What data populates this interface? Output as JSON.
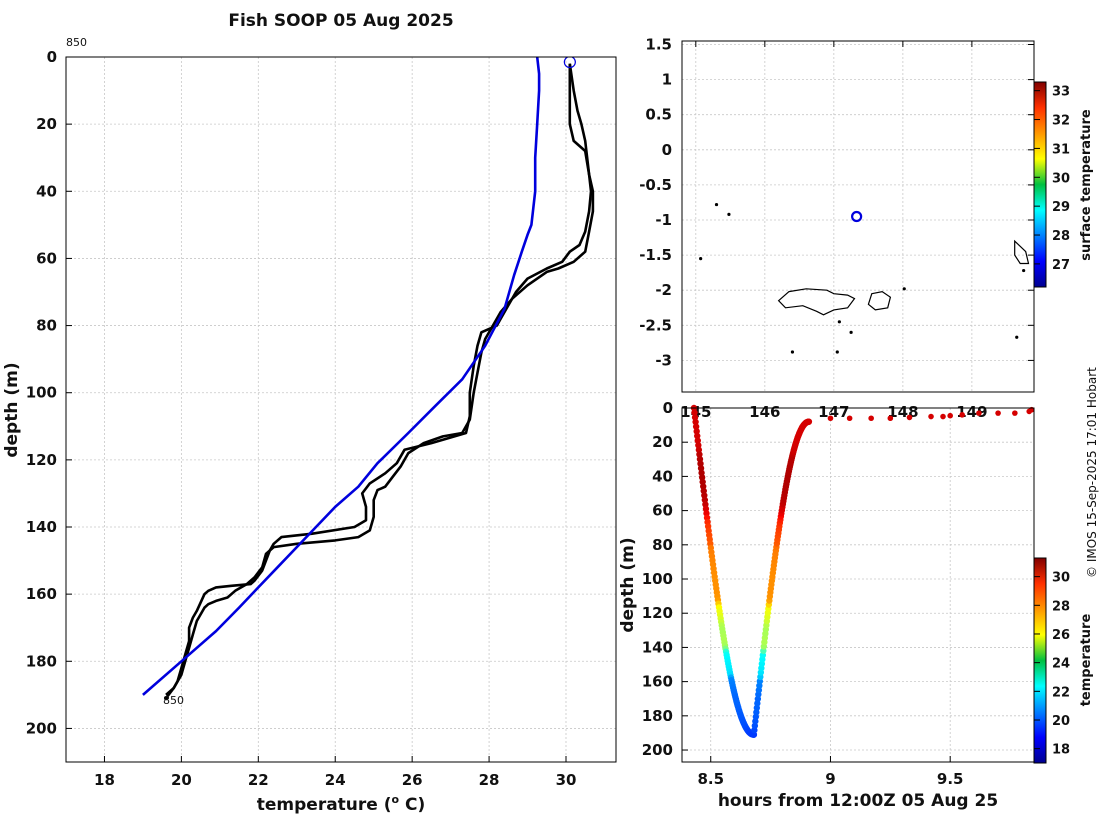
{
  "figure": {
    "title": "Fish SOOP 05 Aug 2025",
    "credit": "© IMOS 15-Sep-2025 17:01 Hobart"
  },
  "chart_data": [
    {
      "id": "profile",
      "type": "line",
      "title": "Fish SOOP 05 Aug 2025",
      "xlabel": "temperature (o C)",
      "xlabel_main": "temperature (",
      "xlabel_sup": "o",
      "xlabel_tail": " C)",
      "ylabel": "depth (m)",
      "xlim": [
        17,
        31.3
      ],
      "ylim": [
        210,
        0
      ],
      "xticks": [
        18,
        20,
        22,
        24,
        26,
        28,
        30
      ],
      "yticks": [
        0,
        20,
        40,
        60,
        80,
        100,
        120,
        140,
        160,
        180,
        200
      ],
      "grid": true,
      "annotations": {
        "top_id": "850",
        "bottom_id": "850"
      },
      "series": [
        {
          "name": "profile-1",
          "color": "#000000",
          "points": [
            [
              30.1,
              2
            ],
            [
              30.1,
              10
            ],
            [
              30.1,
              20
            ],
            [
              30.2,
              25
            ],
            [
              30.5,
              28
            ],
            [
              30.6,
              35
            ],
            [
              30.65,
              40
            ],
            [
              30.6,
              46
            ],
            [
              30.5,
              52
            ],
            [
              30.35,
              56
            ],
            [
              30.1,
              58
            ],
            [
              29.9,
              61
            ],
            [
              29.5,
              63
            ],
            [
              29.0,
              66
            ],
            [
              28.7,
              70
            ],
            [
              28.5,
              74
            ],
            [
              28.3,
              78
            ],
            [
              28.2,
              80
            ],
            [
              27.8,
              82
            ],
            [
              27.7,
              86
            ],
            [
              27.6,
              92
            ],
            [
              27.5,
              100
            ],
            [
              27.5,
              107
            ],
            [
              27.4,
              112
            ],
            [
              26.5,
              115
            ],
            [
              25.8,
              117
            ],
            [
              25.6,
              121
            ],
            [
              25.3,
              124
            ],
            [
              24.9,
              127
            ],
            [
              24.7,
              130
            ],
            [
              24.8,
              134
            ],
            [
              24.8,
              138
            ],
            [
              24.5,
              140
            ],
            [
              23.4,
              142
            ],
            [
              22.6,
              143
            ],
            [
              22.4,
              145
            ],
            [
              22.3,
              147
            ],
            [
              22.2,
              150
            ],
            [
              22.1,
              153
            ],
            [
              21.9,
              156
            ],
            [
              21.8,
              157
            ],
            [
              21.3,
              157.5
            ],
            [
              20.9,
              158
            ],
            [
              20.7,
              159
            ],
            [
              20.6,
              160
            ],
            [
              20.4,
              165
            ],
            [
              20.3,
              167
            ],
            [
              20.2,
              170
            ],
            [
              20.2,
              174
            ],
            [
              20.1,
              178
            ],
            [
              20.0,
              182
            ],
            [
              19.9,
              186
            ],
            [
              19.8,
              188
            ],
            [
              19.6,
              191
            ]
          ]
        },
        {
          "name": "profile-2",
          "color": "#000000",
          "points": [
            [
              30.1,
              2
            ],
            [
              30.2,
              10
            ],
            [
              30.3,
              16
            ],
            [
              30.4,
              20
            ],
            [
              30.5,
              25
            ],
            [
              30.6,
              35
            ],
            [
              30.7,
              40
            ],
            [
              30.7,
              46
            ],
            [
              30.6,
              52
            ],
            [
              30.5,
              58
            ],
            [
              30.2,
              61
            ],
            [
              29.8,
              63
            ],
            [
              29.5,
              64
            ],
            [
              29.0,
              68
            ],
            [
              28.6,
              72
            ],
            [
              28.3,
              76
            ],
            [
              28.1,
              80
            ],
            [
              27.9,
              84
            ],
            [
              27.8,
              88
            ],
            [
              27.7,
              94
            ],
            [
              27.6,
              100
            ],
            [
              27.5,
              108
            ],
            [
              27.3,
              112
            ],
            [
              26.8,
              113
            ],
            [
              26.3,
              115
            ],
            [
              25.9,
              118
            ],
            [
              25.7,
              122
            ],
            [
              25.5,
              125
            ],
            [
              25.3,
              128
            ],
            [
              25.1,
              129
            ],
            [
              25.0,
              132
            ],
            [
              25.0,
              137
            ],
            [
              24.9,
              141
            ],
            [
              24.6,
              143
            ],
            [
              24.0,
              144
            ],
            [
              23.0,
              145
            ],
            [
              22.4,
              146
            ],
            [
              22.2,
              148
            ],
            [
              22.1,
              152
            ],
            [
              21.9,
              155
            ],
            [
              21.7,
              157
            ],
            [
              21.4,
              159
            ],
            [
              21.2,
              161
            ],
            [
              20.9,
              162
            ],
            [
              20.7,
              163
            ],
            [
              20.6,
              164
            ],
            [
              20.4,
              168
            ],
            [
              20.3,
              172
            ],
            [
              20.2,
              176
            ],
            [
              20.1,
              180
            ],
            [
              20.0,
              184
            ],
            [
              19.8,
              188
            ],
            [
              19.6,
              190
            ]
          ]
        },
        {
          "name": "model-climatology",
          "color": "#0000dd",
          "points": [
            [
              29.25,
              0
            ],
            [
              29.3,
              5
            ],
            [
              29.3,
              10
            ],
            [
              29.25,
              20
            ],
            [
              29.2,
              30
            ],
            [
              29.2,
              40
            ],
            [
              29.15,
              45
            ],
            [
              29.1,
              50
            ],
            [
              29.0,
              53
            ],
            [
              28.85,
              58
            ],
            [
              28.65,
              65
            ],
            [
              28.4,
              75
            ],
            [
              27.9,
              86
            ],
            [
              27.3,
              96
            ],
            [
              26.6,
              104
            ],
            [
              25.9,
              112
            ],
            [
              25.1,
              121
            ],
            [
              24.6,
              128
            ],
            [
              24.0,
              134
            ],
            [
              23.5,
              140
            ],
            [
              23.0,
              146
            ],
            [
              22.5,
              152
            ],
            [
              22.0,
              158
            ],
            [
              21.5,
              164
            ],
            [
              20.9,
              171
            ],
            [
              20.0,
              180
            ],
            [
              19.0,
              190
            ]
          ]
        }
      ],
      "marker": {
        "temperature": 30.1,
        "depth": 1.5,
        "color": "#0000dd"
      }
    },
    {
      "id": "map",
      "type": "scatter",
      "xlim": [
        144.8,
        149.9
      ],
      "ylim": [
        -3.45,
        1.55
      ],
      "xticks": [
        145,
        146,
        147,
        148,
        149
      ],
      "xtick_labels": [
        "145",
        "146",
        "147",
        "148",
        "149"
      ],
      "yticks": [
        1.5,
        1,
        0.5,
        0,
        -0.5,
        -1,
        -1.5,
        -2,
        -2.5,
        -3
      ],
      "ytick_labels": [
        "1.5",
        "1",
        "0.5",
        "0",
        "-0.5",
        "-1",
        "-1.5",
        "-2",
        "-2.5",
        "-3"
      ],
      "grid": true,
      "colorbar": {
        "label": "surface temperature",
        "ticks": [
          27,
          28,
          29,
          30,
          31,
          32,
          33
        ],
        "range": [
          26.2,
          33.3
        ]
      },
      "station": {
        "lon": 147.33,
        "lat": -0.95,
        "color": "#0000dd"
      },
      "islands": [
        {
          "name": "main-island",
          "coords": [
            [
              146.2,
              -2.15
            ],
            [
              146.35,
              -2.02
            ],
            [
              146.6,
              -1.98
            ],
            [
              146.9,
              -2.0
            ],
            [
              147.0,
              -2.05
            ],
            [
              147.2,
              -2.07
            ],
            [
              147.3,
              -2.12
            ],
            [
              147.2,
              -2.25
            ],
            [
              147.0,
              -2.28
            ],
            [
              146.85,
              -2.35
            ],
            [
              146.75,
              -2.3
            ],
            [
              146.55,
              -2.22
            ],
            [
              146.3,
              -2.25
            ]
          ]
        },
        {
          "name": "east-islands",
          "coords": [
            [
              147.55,
              -2.05
            ],
            [
              147.7,
              -2.02
            ],
            [
              147.82,
              -2.1
            ],
            [
              147.78,
              -2.25
            ],
            [
              147.6,
              -2.28
            ],
            [
              147.5,
              -2.2
            ]
          ]
        },
        {
          "name": "far-east-island",
          "coords": [
            [
              149.62,
              -1.3
            ],
            [
              149.78,
              -1.45
            ],
            [
              149.82,
              -1.62
            ],
            [
              149.7,
              -1.62
            ],
            [
              149.62,
              -1.5
            ]
          ]
        }
      ],
      "islets": [
        [
          145.3,
          -0.78
        ],
        [
          145.48,
          -0.92
        ],
        [
          145.07,
          -1.55
        ],
        [
          146.4,
          -2.88
        ],
        [
          147.05,
          -2.88
        ],
        [
          148.02,
          -1.98
        ],
        [
          147.08,
          -2.45
        ],
        [
          149.75,
          -1.72
        ],
        [
          149.65,
          -2.67
        ],
        [
          147.25,
          -2.6
        ]
      ]
    },
    {
      "id": "track",
      "type": "scatter",
      "xlabel": "hours from 12:00Z 05 Aug 25",
      "ylabel": "depth (m)",
      "xlim": [
        8.38,
        9.85
      ],
      "ylim": [
        207,
        0
      ],
      "xticks": [
        8.5,
        9,
        9.5
      ],
      "xtick_labels": [
        "8.5",
        "9",
        "9.5"
      ],
      "yticks": [
        0,
        20,
        40,
        60,
        80,
        100,
        120,
        140,
        160,
        180,
        200
      ],
      "colorbar": {
        "label": "temperature",
        "ticks": [
          18,
          20,
          22,
          24,
          26,
          28,
          30
        ],
        "range": [
          17,
          31.3
        ]
      },
      "surface_points": [
        [
          9.0,
          6
        ],
        [
          9.08,
          6
        ],
        [
          9.17,
          6
        ],
        [
          9.25,
          6
        ],
        [
          9.33,
          5.5
        ],
        [
          9.42,
          5
        ],
        [
          9.47,
          5
        ],
        [
          9.5,
          4.5
        ],
        [
          9.55,
          4
        ],
        [
          9.62,
          3
        ],
        [
          9.7,
          3
        ],
        [
          9.77,
          3
        ],
        [
          9.83,
          2
        ],
        [
          9.84,
          1
        ]
      ],
      "cast": {
        "t_start": 8.43,
        "t_bottom": 8.68,
        "t_end": 8.91,
        "depth_start": 0,
        "depth_end": 8,
        "max_depth": 191
      }
    }
  ]
}
